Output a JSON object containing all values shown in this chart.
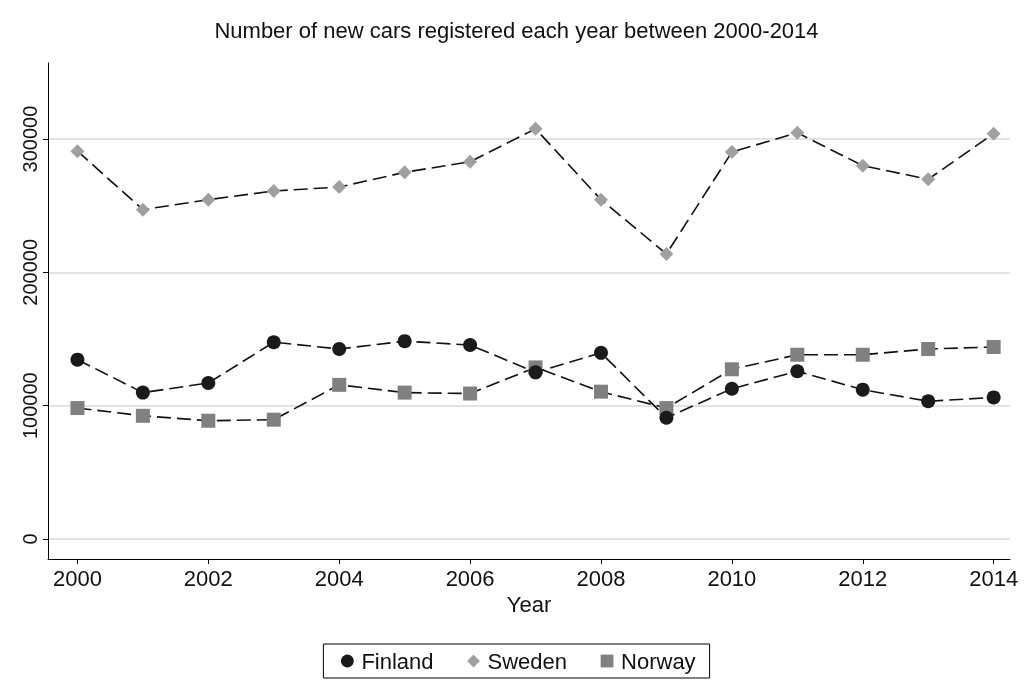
{
  "chart_data": {
    "type": "line",
    "title": "Number of new cars registered each year between 2000-2014",
    "xlabel": "Year",
    "x": [
      2000,
      2001,
      2002,
      2003,
      2004,
      2005,
      2006,
      2007,
      2008,
      2009,
      2010,
      2011,
      2012,
      2013,
      2014
    ],
    "series": [
      {
        "name": "Finland",
        "color": "#1a1a1a",
        "marker": "circle",
        "line_style": "dashed",
        "values": [
          134500,
          109800,
          117000,
          147600,
          142500,
          148400,
          145500,
          125000,
          139600,
          90900,
          112700,
          125800,
          112000,
          103300,
          106200
        ]
      },
      {
        "name": "Sweden",
        "color": "#a0a0a0",
        "marker": "diamond",
        "line_style": "dashed",
        "values": [
          290900,
          247000,
          254500,
          261000,
          264000,
          275000,
          283000,
          307600,
          254500,
          213800,
          290200,
          304700,
          280000,
          269800,
          304000
        ]
      },
      {
        "name": "Norway",
        "color": "#808080",
        "marker": "square",
        "line_style": "dashed",
        "values": [
          98200,
          92400,
          88700,
          89500,
          115600,
          109800,
          109100,
          128700,
          110500,
          98200,
          127300,
          138200,
          138200,
          142500,
          144000
        ]
      }
    ],
    "xlim": [
      1999.55,
      2014.25
    ],
    "xticks": [
      2000,
      2002,
      2004,
      2006,
      2008,
      2010,
      2012,
      2014
    ],
    "ylim": [
      -15000,
      357000
    ],
    "yticks": [
      0,
      100000,
      200000,
      300000
    ],
    "grid": "y",
    "legend": "bottom"
  }
}
